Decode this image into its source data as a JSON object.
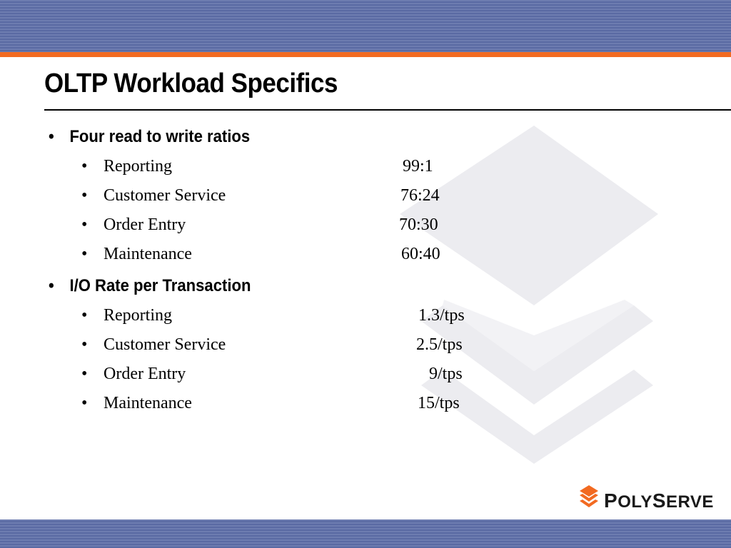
{
  "slide": {
    "title": "OLTP Workload Specifics"
  },
  "sections": [
    {
      "heading": "Four read to write ratios",
      "items": [
        {
          "label": "Reporting",
          "value": "99:1"
        },
        {
          "label": "Customer Service",
          "value": "76:24"
        },
        {
          "label": "Order Entry",
          "value": "70:30"
        },
        {
          "label": "Maintenance",
          "value": "60:40"
        }
      ]
    },
    {
      "heading": "I/O Rate per Transaction",
      "items": [
        {
          "label": "Reporting",
          "value": "1.3/tps"
        },
        {
          "label": "Customer Service",
          "value": "2.5/tps"
        },
        {
          "label": "Order Entry",
          "value": "9/tps"
        },
        {
          "label": "Maintenance",
          "value": "15/tps"
        }
      ]
    }
  ],
  "bullets": {
    "main": "•",
    "sub": "•"
  },
  "logo": {
    "text_p": "P",
    "text_oly": "OLY",
    "text_s": "S",
    "text_erve": "ERVE",
    "icon": "stacked-chevrons-icon"
  },
  "colors": {
    "band": "#5a6aa3",
    "accent": "#f26a21",
    "watermark": "#ececf0"
  }
}
